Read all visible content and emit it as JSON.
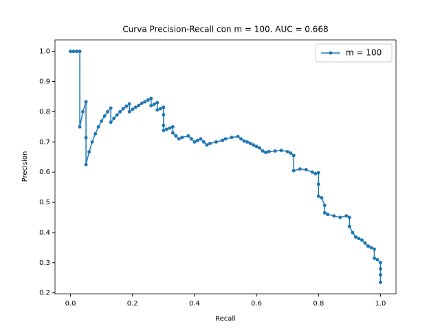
{
  "chart_data": {
    "type": "line",
    "title": "Curva Precision-Recall con m = 100. AUC = 0.668",
    "x_label": "Recall",
    "y_label": "Precision",
    "x": [
      0,
      0.01,
      0.02,
      0.03,
      0.03,
      0.04,
      0.05,
      0.05,
      0.05,
      0.06,
      0.07,
      0.08,
      0.09,
      0.1,
      0.11,
      0.12,
      0.13,
      0.13,
      0.14,
      0.15,
      0.16,
      0.17,
      0.18,
      0.19,
      0.19,
      0.2,
      0.21,
      0.22,
      0.23,
      0.24,
      0.25,
      0.26,
      0.26,
      0.27,
      0.28,
      0.28,
      0.29,
      0.3,
      0.3,
      0.3,
      0.3,
      0.31,
      0.32,
      0.33,
      0.33,
      0.34,
      0.35,
      0.36,
      0.38,
      0.39,
      0.4,
      0.41,
      0.42,
      0.43,
      0.44,
      0.45,
      0.47,
      0.49,
      0.5,
      0.52,
      0.54,
      0.55,
      0.56,
      0.57,
      0.58,
      0.59,
      0.6,
      0.61,
      0.62,
      0.63,
      0.64,
      0.66,
      0.68,
      0.7,
      0.71,
      0.72,
      0.72,
      0.74,
      0.76,
      0.78,
      0.79,
      0.8,
      0.8,
      0.8,
      0.81,
      0.82,
      0.82,
      0.83,
      0.85,
      0.87,
      0.89,
      0.9,
      0.9,
      0.91,
      0.92,
      0.93,
      0.94,
      0.95,
      0.96,
      0.97,
      0.98,
      0.98,
      0.99,
      1.0,
      1.0,
      1.0,
      1.0
    ],
    "series": [
      {
        "name": "m = 100",
        "color": "#1f77b4",
        "values": [
          1.0,
          1.0,
          1.0,
          1.0,
          0.75,
          0.8,
          0.833,
          0.714,
          0.625,
          0.667,
          0.7,
          0.727,
          0.75,
          0.769,
          0.786,
          0.8,
          0.812,
          0.765,
          0.778,
          0.789,
          0.8,
          0.81,
          0.818,
          0.826,
          0.8,
          0.808,
          0.815,
          0.821,
          0.828,
          0.833,
          0.839,
          0.844,
          0.82,
          0.825,
          0.83,
          0.806,
          0.81,
          0.815,
          0.79,
          0.755,
          0.738,
          0.742,
          0.746,
          0.75,
          0.73,
          0.72,
          0.71,
          0.715,
          0.72,
          0.71,
          0.7,
          0.705,
          0.71,
          0.7,
          0.69,
          0.695,
          0.7,
          0.705,
          0.71,
          0.715,
          0.718,
          0.71,
          0.703,
          0.7,
          0.695,
          0.69,
          0.685,
          0.68,
          0.67,
          0.665,
          0.668,
          0.67,
          0.672,
          0.668,
          0.663,
          0.655,
          0.605,
          0.61,
          0.608,
          0.6,
          0.595,
          0.598,
          0.56,
          0.52,
          0.515,
          0.49,
          0.465,
          0.46,
          0.455,
          0.45,
          0.455,
          0.45,
          0.42,
          0.4,
          0.385,
          0.38,
          0.375,
          0.365,
          0.355,
          0.35,
          0.345,
          0.315,
          0.31,
          0.3,
          0.28,
          0.26,
          0.235
        ]
      }
    ],
    "xlim": [
      -0.05,
      1.05
    ],
    "ylim": [
      0.197,
      1.038
    ],
    "xticks": [
      {
        "value": 0,
        "label": "0.0"
      },
      0.2,
      0.4,
      0.6,
      0.8,
      {
        "value": 1,
        "label": "1.0"
      }
    ],
    "yticks": [
      0.2,
      0.3,
      0.4,
      0.5,
      0.6,
      0.7,
      0.8,
      0.9,
      {
        "value": 1,
        "label": "1.0"
      }
    ],
    "legend": "upper right"
  }
}
